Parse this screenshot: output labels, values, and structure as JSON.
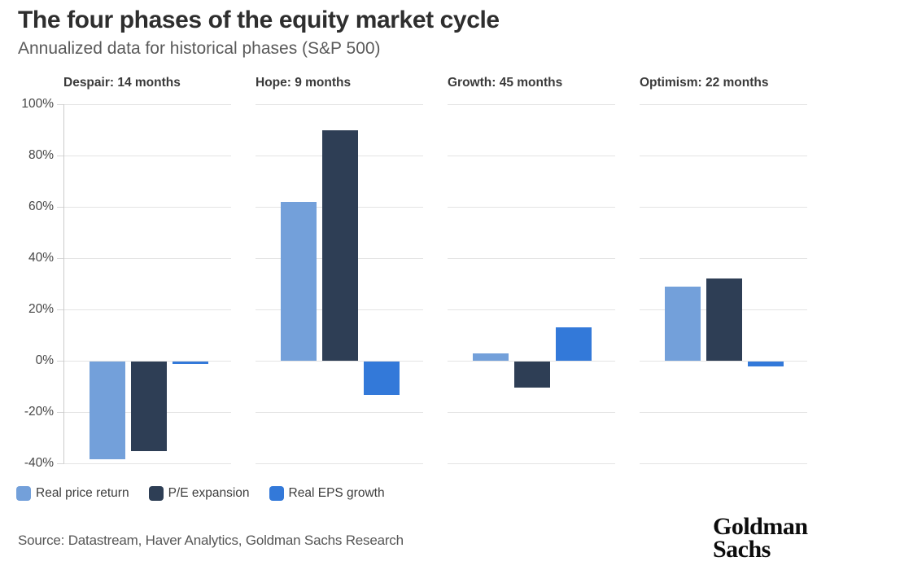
{
  "chart_data": {
    "type": "bar",
    "title": "The four phases of the equity market cycle",
    "subtitle": "Annualized data for historical phases (S&P 500)",
    "categories": [
      "Despair: 14 months",
      "Hope: 9 months",
      "Growth: 45 months",
      "Optimism: 22 months"
    ],
    "series": [
      {
        "name": "Real price return",
        "color": "#73a0da",
        "values": [
          -38,
          62,
          3,
          29
        ]
      },
      {
        "name": "P/E expansion",
        "color": "#2e3e55",
        "values": [
          -35,
          90,
          -10,
          32
        ]
      },
      {
        "name": "Real EPS growth",
        "color": "#3379d9",
        "values": [
          -1,
          -13,
          13,
          -2
        ]
      }
    ],
    "unit": "%",
    "ylim": [
      -40,
      100
    ],
    "ytick_step": 20,
    "ytick_labels": [
      "100%",
      "80%",
      "60%",
      "40%",
      "20%",
      "0%",
      "-20%",
      "-40%"
    ],
    "grid": true,
    "legend_position": "bottom-left",
    "gridline_color": "#e4e4e4",
    "axis_line_color": "#cbcbcb"
  },
  "footer": {
    "source": "Source: Datastream, Haver Analytics, Goldman Sachs Research",
    "logo_line1": "Goldman",
    "logo_line2": "Sachs"
  }
}
